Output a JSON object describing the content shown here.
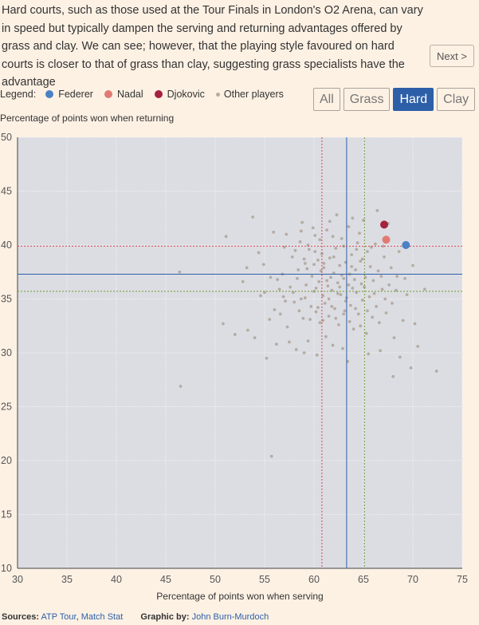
{
  "intro_text": "Hard courts, such as those used at the Tour Finals in London's O2 Arena, can vary in speed but typically dampen the serving and returning advantages offered by grass and clay. We can see; however, that the playing style favoured on hard courts is closer to that of grass than clay, suggesting grass specialists have the advantage",
  "next_label": "Next >",
  "legend": {
    "title": "Legend:",
    "items": [
      {
        "label": "Federer",
        "color": "#4a81c4"
      },
      {
        "label": "Nadal",
        "color": "#e07b73"
      },
      {
        "label": "Djokovic",
        "color": "#a3223f"
      },
      {
        "label": "Other players",
        "color": "#b5aca4"
      }
    ]
  },
  "tabs": [
    "All",
    "Grass",
    "Hard",
    "Clay"
  ],
  "active_tab": "Hard",
  "footer": {
    "sources_label": "Sources:",
    "source1": "ATP Tour",
    "sep": ",",
    "source2": "Match Stat",
    "graphic_label": "Graphic by:",
    "author": "John Burn-Murdoch"
  },
  "colors": {
    "background": "#fdf1e4",
    "plot_bg": "#dcdde3",
    "accent": "#2d5fa8"
  },
  "chart_data": {
    "type": "scatter",
    "xlabel": "Percentage of points won when serving",
    "ylabel": "Percentage of points won when returning",
    "xlim": [
      30,
      75
    ],
    "ylim": [
      10,
      50
    ],
    "xticks": [
      30,
      35,
      40,
      45,
      50,
      55,
      60,
      65,
      70,
      75
    ],
    "yticks": [
      10,
      15,
      20,
      25,
      30,
      35,
      40,
      45,
      50
    ],
    "grid": true,
    "highlighted": [
      {
        "name": "Federer",
        "x": 69.3,
        "y": 40.0,
        "color": "#4a81c4"
      },
      {
        "name": "Nadal",
        "x": 67.3,
        "y": 40.5,
        "color": "#e07b73"
      },
      {
        "name": "Djokovic",
        "x": 67.1,
        "y": 41.9,
        "color": "#a3223f"
      }
    ],
    "reference_lines": [
      {
        "axis": "x",
        "value": 63.3,
        "style": "solid",
        "color": "#2d5fa8"
      },
      {
        "axis": "y",
        "value": 37.3,
        "style": "solid",
        "color": "#2d5fa8"
      },
      {
        "axis": "x",
        "value": 60.8,
        "style": "dotted",
        "color": "#d9454c"
      },
      {
        "axis": "y",
        "value": 39.9,
        "style": "dotted",
        "color": "#d9454c"
      },
      {
        "axis": "x",
        "value": 65.1,
        "style": "dotted",
        "color": "#6f9a2c"
      },
      {
        "axis": "y",
        "value": 35.7,
        "style": "dotted",
        "color": "#6f9a2c"
      }
    ],
    "others": [
      [
        46.4,
        37.5
      ],
      [
        46.5,
        26.9
      ],
      [
        50.8,
        32.7
      ],
      [
        51.1,
        40.8
      ],
      [
        52.0,
        31.7
      ],
      [
        53.3,
        32.1
      ],
      [
        53.8,
        42.6
      ],
      [
        54.0,
        31.4
      ],
      [
        54.9,
        38.2
      ],
      [
        55.0,
        35.6
      ],
      [
        55.2,
        29.5
      ],
      [
        55.5,
        33.1
      ],
      [
        55.7,
        20.4
      ],
      [
        56.0,
        34.0
      ],
      [
        56.3,
        36.8
      ],
      [
        56.6,
        33.6
      ],
      [
        56.9,
        35.2
      ],
      [
        57.2,
        41.0
      ],
      [
        57.3,
        32.4
      ],
      [
        57.6,
        36.1
      ],
      [
        57.8,
        38.9
      ],
      [
        58.0,
        34.7
      ],
      [
        58.2,
        30.3
      ],
      [
        58.4,
        37.7
      ],
      [
        58.6,
        40.3
      ],
      [
        58.7,
        35.0
      ],
      [
        58.9,
        33.2
      ],
      [
        59.1,
        38.3
      ],
      [
        59.2,
        36.3
      ],
      [
        59.4,
        31.1
      ],
      [
        59.5,
        39.6
      ],
      [
        59.7,
        34.3
      ],
      [
        59.8,
        37.1
      ],
      [
        60.0,
        35.7
      ],
      [
        60.1,
        40.9
      ],
      [
        60.2,
        33.8
      ],
      [
        60.4,
        38.6
      ],
      [
        60.5,
        36.6
      ],
      [
        60.6,
        32.8
      ],
      [
        60.8,
        39.2
      ],
      [
        60.9,
        35.3
      ],
      [
        61.0,
        37.9
      ],
      [
        61.1,
        34.6
      ],
      [
        61.3,
        41.4
      ],
      [
        61.4,
        36.2
      ],
      [
        61.5,
        33.4
      ],
      [
        61.6,
        38.8
      ],
      [
        61.8,
        35.8
      ],
      [
        61.9,
        30.7
      ],
      [
        62.0,
        37.4
      ],
      [
        62.1,
        34.1
      ],
      [
        62.2,
        39.7
      ],
      [
        62.4,
        36.5
      ],
      [
        62.5,
        32.6
      ],
      [
        62.6,
        38.1
      ],
      [
        62.7,
        35.4
      ],
      [
        62.8,
        40.6
      ],
      [
        63.0,
        36.9
      ],
      [
        63.1,
        33.9
      ],
      [
        63.2,
        38.4
      ],
      [
        63.3,
        35.1
      ],
      [
        63.5,
        41.7
      ],
      [
        63.6,
        37.3
      ],
      [
        63.7,
        34.4
      ],
      [
        63.8,
        39.1
      ],
      [
        63.9,
        36.0
      ],
      [
        64.0,
        32.2
      ],
      [
        64.2,
        37.7
      ],
      [
        64.3,
        35.6
      ],
      [
        64.4,
        40.2
      ],
      [
        64.5,
        33.6
      ],
      [
        64.7,
        38.5
      ],
      [
        64.8,
        36.4
      ],
      [
        64.9,
        34.9
      ],
      [
        65.0,
        42.3
      ],
      [
        65.2,
        37.0
      ],
      [
        65.3,
        31.8
      ],
      [
        65.4,
        39.4
      ],
      [
        65.6,
        35.2
      ],
      [
        65.7,
        38.0
      ],
      [
        65.9,
        33.3
      ],
      [
        66.0,
        36.7
      ],
      [
        66.2,
        40.1
      ],
      [
        66.3,
        34.3
      ],
      [
        66.5,
        37.6
      ],
      [
        66.7,
        30.2
      ],
      [
        66.9,
        35.9
      ],
      [
        67.1,
        38.9
      ],
      [
        67.3,
        33.7
      ],
      [
        67.6,
        36.3
      ],
      [
        67.9,
        34.6
      ],
      [
        68.1,
        31.4
      ],
      [
        68.4,
        37.1
      ],
      [
        68.7,
        29.6
      ],
      [
        69.0,
        33.0
      ],
      [
        69.4,
        35.4
      ],
      [
        69.8,
        28.6
      ],
      [
        70.2,
        32.7
      ],
      [
        70.5,
        30.6
      ],
      [
        71.2,
        35.9
      ],
      [
        72.4,
        28.3
      ],
      [
        68.0,
        27.8
      ],
      [
        67.5,
        42.0
      ],
      [
        66.4,
        43.2
      ],
      [
        70.0,
        38.1
      ],
      [
        57.0,
        39.8
      ],
      [
        58.8,
        42.1
      ],
      [
        59.9,
        41.6
      ],
      [
        62.3,
        42.8
      ],
      [
        64.6,
        41.1
      ],
      [
        61.2,
        31.5
      ],
      [
        62.9,
        30.4
      ],
      [
        60.3,
        29.8
      ],
      [
        63.4,
        29.2
      ],
      [
        65.5,
        29.9
      ],
      [
        59.0,
        30.0
      ],
      [
        57.5,
        31.0
      ],
      [
        56.2,
        30.8
      ],
      [
        54.6,
        35.3
      ],
      [
        53.2,
        37.9
      ],
      [
        52.8,
        36.6
      ],
      [
        54.4,
        39.3
      ],
      [
        55.9,
        41.2
      ],
      [
        56.8,
        37.3
      ],
      [
        58.3,
        36.9
      ],
      [
        59.3,
        37.8
      ],
      [
        60.7,
        37.6
      ],
      [
        61.7,
        37.0
      ],
      [
        62.8,
        37.2
      ],
      [
        64.1,
        36.8
      ],
      [
        65.1,
        36.1
      ],
      [
        66.1,
        35.5
      ],
      [
        67.2,
        35.0
      ],
      [
        68.3,
        35.8
      ],
      [
        69.2,
        36.9
      ],
      [
        59.6,
        33.1
      ],
      [
        60.9,
        33.0
      ],
      [
        62.2,
        33.2
      ],
      [
        63.6,
        32.9
      ],
      [
        64.7,
        32.5
      ],
      [
        66.6,
        32.8
      ],
      [
        58.1,
        39.5
      ],
      [
        59.4,
        40.0
      ],
      [
        60.6,
        40.5
      ],
      [
        61.9,
        40.8
      ],
      [
        63.0,
        39.9
      ],
      [
        64.3,
        39.6
      ],
      [
        65.8,
        39.8
      ],
      [
        67.0,
        39.9
      ],
      [
        68.6,
        39.4
      ],
      [
        61.5,
        35.0
      ],
      [
        62.4,
        35.5
      ],
      [
        63.2,
        34.8
      ],
      [
        60.2,
        36.0
      ],
      [
        59.1,
        35.1
      ],
      [
        57.9,
        35.6
      ],
      [
        62.0,
        38.9
      ],
      [
        63.8,
        38.0
      ],
      [
        61.0,
        38.3
      ],
      [
        64.9,
        38.7
      ],
      [
        60.4,
        34.2
      ],
      [
        61.8,
        34.3
      ],
      [
        63.0,
        33.6
      ],
      [
        64.2,
        34.1
      ],
      [
        65.4,
        33.9
      ],
      [
        62.6,
        36.1
      ],
      [
        63.5,
        36.3
      ],
      [
        61.3,
        36.7
      ],
      [
        60.0,
        38.2
      ],
      [
        59.0,
        38.7
      ],
      [
        66.8,
        37.1
      ],
      [
        67.8,
        37.9
      ],
      [
        58.5,
        33.9
      ],
      [
        57.1,
        34.8
      ],
      [
        56.5,
        35.9
      ],
      [
        55.6,
        37.0
      ],
      [
        58.7,
        41.3
      ],
      [
        61.6,
        42.2
      ],
      [
        63.9,
        42.5
      ],
      [
        60.1,
        39.4
      ]
    ]
  }
}
